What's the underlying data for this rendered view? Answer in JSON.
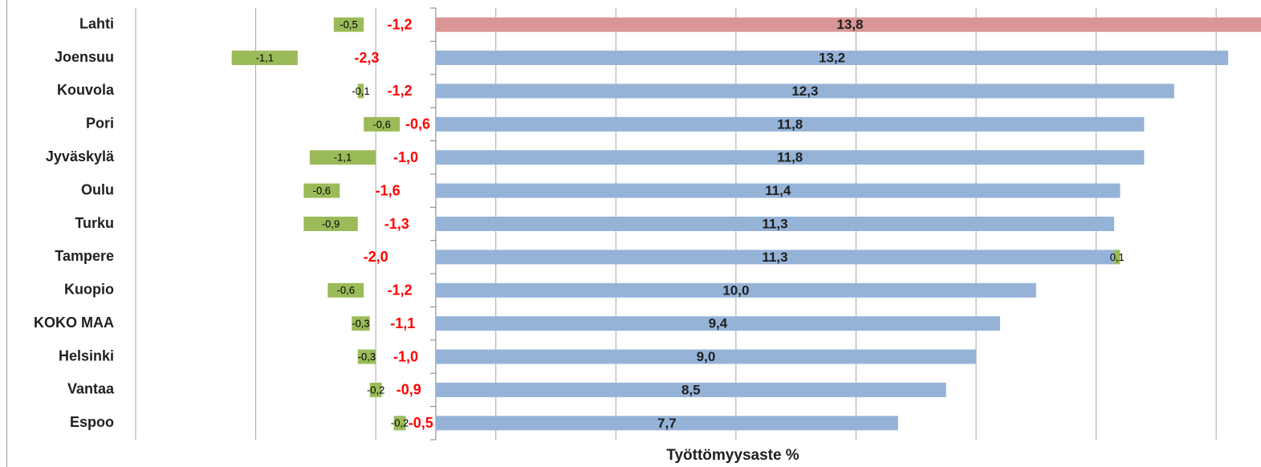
{
  "chart_data": {
    "type": "stacked_barh",
    "categories": [
      "Lahti",
      "Joensuu",
      "Kouvola",
      "Pori",
      "Jyväskylä",
      "Oulu",
      "Turku",
      "Tampere",
      "Kuopio",
      "KOKO MAA",
      "Helsinki",
      "Vantaa",
      "Espoo"
    ],
    "xlabel": "Työttömyysaste %",
    "xlim": [
      -5,
      13.8
    ],
    "xticks": [
      -5,
      -3,
      -1,
      1,
      3,
      5,
      7,
      9,
      11,
      13
    ],
    "show_tick_labels": false,
    "grid": true,
    "series": [
      {
        "color": "#95b3d7",
        "colors": [
          "#d99694",
          "#95b3d7",
          "#95b3d7",
          "#95b3d7",
          "#95b3d7",
          "#95b3d7",
          "#95b3d7",
          "#95b3d7",
          "#95b3d7",
          "#95b3d7",
          "#95b3d7",
          "#95b3d7",
          "#95b3d7"
        ],
        "label_color": "#1f1f1f",
        "values": [
          13.8,
          13.2,
          12.3,
          11.8,
          11.8,
          11.4,
          11.3,
          11.3,
          10.0,
          9.4,
          9.0,
          8.5,
          7.7
        ],
        "value_labels": [
          "13,8",
          "13,2",
          "12,3",
          "11,8",
          "11,8",
          "11,4",
          "11,3",
          "11,3",
          "10,0",
          "9,4",
          "9,0",
          "8,5",
          "7,7"
        ]
      },
      {
        "color": "none",
        "label_color": "#ff0000",
        "values": [
          -1.2,
          -2.3,
          -1.2,
          -0.6,
          -1.0,
          -1.6,
          -1.3,
          -2.0,
          -1.2,
          -1.1,
          -1.0,
          -0.9,
          -0.5
        ],
        "value_labels": [
          "-1,2",
          "-2,3",
          "-1,2",
          "-0,6",
          "-1,0",
          "-1,6",
          "-1,3",
          "-2,0",
          "-1,2",
          "-1,1",
          "-1,0",
          "-0,9",
          "-0,5"
        ]
      },
      {
        "color": "#9bbb59",
        "label_color": "#000000",
        "values": [
          -0.5,
          -1.1,
          -0.1,
          -0.6,
          -1.1,
          -0.6,
          -0.9,
          0.1,
          -0.6,
          -0.3,
          -0.3,
          -0.2,
          -0.2
        ],
        "value_labels": [
          "-0,5",
          "-1,1",
          "-0,1",
          "-0,6",
          "-1,1",
          "-0,6",
          "-0,9",
          "0,1",
          "-0,6",
          "-0,3",
          "-0,3",
          "-0,2",
          "-0,2"
        ]
      }
    ]
  }
}
